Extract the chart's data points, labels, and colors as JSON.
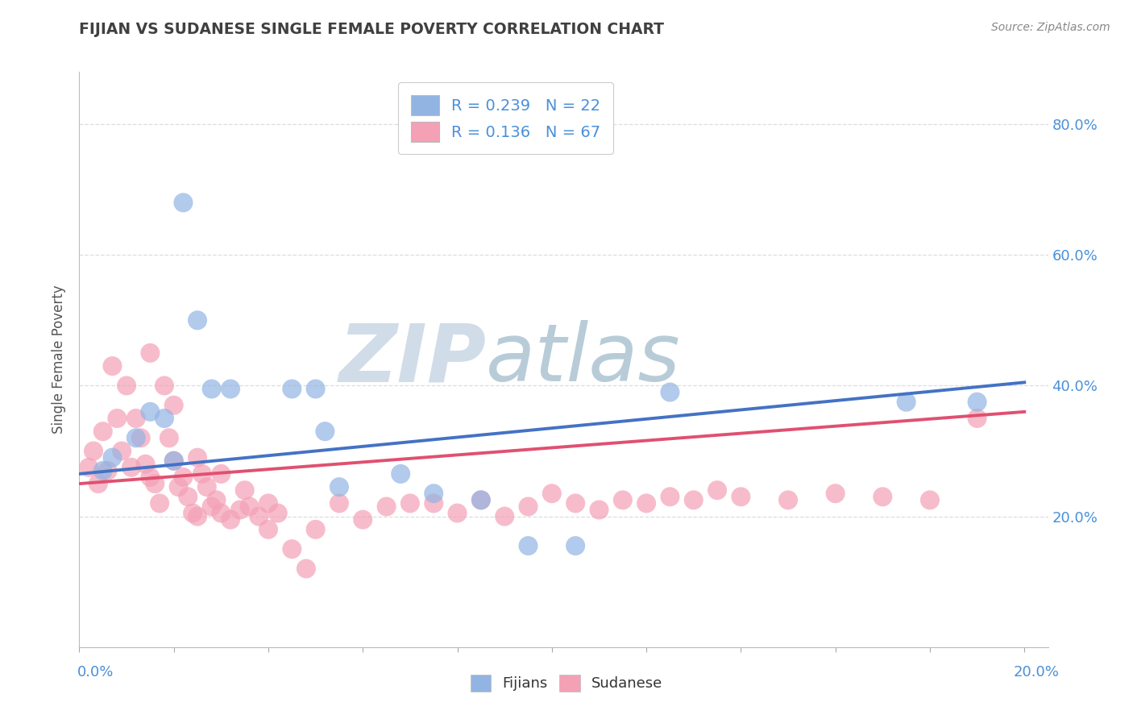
{
  "title": "FIJIAN VS SUDANESE SINGLE FEMALE POVERTY CORRELATION CHART",
  "source": "Source: ZipAtlas.com",
  "ylabel": "Single Female Poverty",
  "legend_bottom": [
    "Fijians",
    "Sudanese"
  ],
  "fijian_R": "0.239",
  "fijian_N": "22",
  "sudanese_R": "0.136",
  "sudanese_N": "67",
  "fijian_color": "#92b4e3",
  "sudanese_color": "#f4a0b5",
  "trend_fijian_color": "#4472c4",
  "trend_sudanese_color": "#e05070",
  "fijian_scatter_x": [
    0.5,
    0.7,
    1.2,
    1.5,
    1.8,
    2.0,
    2.2,
    2.5,
    2.8,
    3.2,
    4.5,
    5.0,
    5.2,
    5.5,
    6.8,
    7.5,
    8.5,
    9.5,
    10.5,
    12.5,
    17.5,
    19.0
  ],
  "fijian_scatter_y": [
    27.0,
    29.0,
    32.0,
    36.0,
    35.0,
    28.5,
    68.0,
    50.0,
    39.5,
    39.5,
    39.5,
    39.5,
    33.0,
    24.5,
    26.5,
    23.5,
    22.5,
    15.5,
    15.5,
    39.0,
    37.5,
    37.5
  ],
  "sudanese_scatter_x": [
    0.2,
    0.3,
    0.4,
    0.5,
    0.6,
    0.7,
    0.8,
    0.9,
    1.0,
    1.1,
    1.2,
    1.3,
    1.4,
    1.5,
    1.6,
    1.7,
    1.8,
    1.9,
    2.0,
    2.1,
    2.2,
    2.3,
    2.4,
    2.5,
    2.6,
    2.7,
    2.8,
    2.9,
    3.0,
    3.2,
    3.4,
    3.6,
    3.8,
    4.0,
    4.2,
    4.5,
    5.0,
    5.5,
    6.0,
    6.5,
    7.0,
    7.5,
    8.0,
    8.5,
    9.0,
    9.5,
    10.0,
    10.5,
    11.0,
    11.5,
    12.0,
    12.5,
    13.0,
    13.5,
    14.0,
    15.0,
    16.0,
    17.0,
    18.0,
    1.5,
    2.0,
    2.5,
    3.0,
    3.5,
    4.0,
    4.8,
    19.0
  ],
  "sudanese_scatter_y": [
    27.5,
    30.0,
    25.0,
    33.0,
    27.0,
    43.0,
    35.0,
    30.0,
    40.0,
    27.5,
    35.0,
    32.0,
    28.0,
    26.0,
    25.0,
    22.0,
    40.0,
    32.0,
    28.5,
    24.5,
    26.0,
    23.0,
    20.5,
    20.0,
    26.5,
    24.5,
    21.5,
    22.5,
    20.5,
    19.5,
    21.0,
    21.5,
    20.0,
    22.0,
    20.5,
    15.0,
    18.0,
    22.0,
    19.5,
    21.5,
    22.0,
    22.0,
    20.5,
    22.5,
    20.0,
    21.5,
    23.5,
    22.0,
    21.0,
    22.5,
    22.0,
    23.0,
    22.5,
    24.0,
    23.0,
    22.5,
    23.5,
    23.0,
    22.5,
    45.0,
    37.0,
    29.0,
    26.5,
    24.0,
    18.0,
    12.0,
    35.0
  ],
  "fijian_trend_x": [
    0.0,
    20.0
  ],
  "fijian_trend_y": [
    26.5,
    40.5
  ],
  "sudanese_trend_x": [
    0.0,
    20.0
  ],
  "sudanese_trend_y": [
    25.0,
    36.0
  ],
  "xlim": [
    0.0,
    20.5
  ],
  "ylim": [
    0.0,
    88.0
  ],
  "yticks": [
    0.0,
    20.0,
    40.0,
    60.0,
    80.0
  ],
  "ytick_labels": [
    "",
    "20.0%",
    "40.0%",
    "60.0%",
    "80.0%"
  ],
  "xtick_left_label": "0.0%",
  "xtick_right_label": "20.0%",
  "bg_color": "#ffffff",
  "grid_color": "#dddddd",
  "watermark_zip_color": "#d0dce8",
  "watermark_atlas_color": "#b8ccd8",
  "title_color": "#404040",
  "axis_label_color": "#4a90d9",
  "legend_text_color": "#4a90d9",
  "source_color": "#888888"
}
